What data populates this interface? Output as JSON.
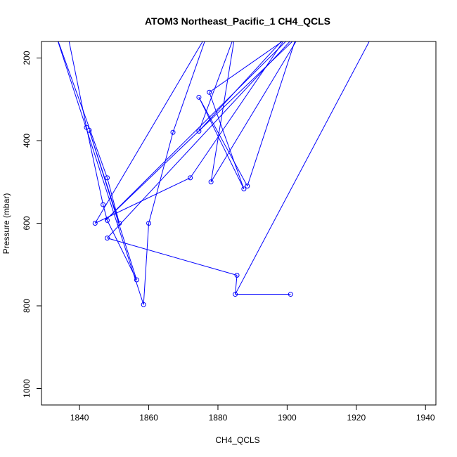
{
  "chart_data": {
    "type": "line",
    "title": "ATOM3 Northeast_Pacific_1 CH4_QCLS",
    "xlabel": "CH4_QCLS",
    "ylabel": "Pressure (mbar)",
    "xlim": [
      1829,
      1943
    ],
    "ylim": [
      1040,
      160
    ],
    "y_inverted": true,
    "x_ticks": [
      1840,
      1860,
      1880,
      1900,
      1920,
      1940
    ],
    "y_ticks": [
      200,
      400,
      600,
      800,
      1000
    ],
    "grid": false,
    "legend": "none",
    "color": "#0000ff",
    "series": [
      {
        "points": [
          [
            1836.5,
            140
          ],
          [
            1842.0,
            368
          ],
          [
            1847.0,
            555
          ],
          [
            1848.0,
            593
          ],
          [
            1856.5,
            737
          ],
          [
            1842.8,
            375
          ],
          [
            1851.5,
            600
          ],
          [
            1848.0,
            490
          ],
          [
            1833.0,
            140
          ],
          [
            1858.5,
            797
          ],
          [
            1860.0,
            600
          ],
          [
            1867.0,
            380
          ],
          [
            1877.0,
            140
          ],
          [
            1844.5,
            600
          ],
          [
            1872.0,
            490
          ],
          [
            1900.5,
            140
          ],
          [
            1874.5,
            377
          ],
          [
            1885.0,
            140
          ],
          [
            1878.0,
            500
          ],
          [
            1904.0,
            140
          ],
          [
            1847.5,
            593
          ],
          [
            1902.0,
            140
          ],
          [
            1877.5,
            283
          ],
          [
            1874.5,
            295
          ],
          [
            1888.5,
            510
          ],
          [
            1903.0,
            140
          ],
          [
            1885.0,
            772
          ],
          [
            1901.0,
            772
          ]
        ],
        "dense_points": [
          [
            1836.5,
            140
          ],
          [
            1842.0,
            368
          ],
          [
            1846.8,
            555
          ],
          [
            1848.0,
            593
          ],
          [
            1856.5,
            737
          ],
          [
            1842.8,
            375
          ],
          [
            1851.5,
            600
          ],
          [
            1848.0,
            490
          ],
          [
            1833.0,
            140
          ],
          [
            1858.5,
            797
          ],
          [
            1860.0,
            600
          ],
          [
            1867.0,
            380
          ],
          [
            1877.0,
            140
          ],
          [
            1844.5,
            600
          ],
          [
            1872.0,
            490
          ],
          [
            1900.5,
            140
          ],
          [
            1874.5,
            377
          ],
          [
            1885.0,
            140
          ],
          [
            1878.0,
            500
          ],
          [
            1904.0,
            140
          ],
          [
            1847.5,
            593
          ],
          [
            1902.0,
            140
          ],
          [
            1877.5,
            283
          ],
          [
            1887.5,
            517
          ],
          [
            1874.5,
            295
          ],
          [
            1888.5,
            510
          ],
          [
            1903.0,
            140
          ],
          [
            1848.0,
            636
          ],
          [
            1885.5,
            726
          ],
          [
            1885.0,
            772
          ],
          [
            1901.0,
            772
          ],
          [
            1885.0,
            772
          ],
          [
            1925.0,
            140
          ]
        ],
        "markers": [
          [
            1842.0,
            368
          ],
          [
            1842.8,
            375
          ],
          [
            1848.0,
            490
          ],
          [
            1846.8,
            555
          ],
          [
            1848.0,
            593
          ],
          [
            1851.5,
            600
          ],
          [
            1844.5,
            600
          ],
          [
            1848.0,
            636
          ],
          [
            1856.5,
            737
          ],
          [
            1858.5,
            797
          ],
          [
            1860.0,
            600
          ],
          [
            1867.0,
            380
          ],
          [
            1872.0,
            490
          ],
          [
            1874.5,
            377
          ],
          [
            1878.0,
            500
          ],
          [
            1877.5,
            283
          ],
          [
            1874.5,
            295
          ],
          [
            1887.5,
            517
          ],
          [
            1888.5,
            510
          ],
          [
            1885.5,
            726
          ],
          [
            1885.0,
            772
          ],
          [
            1901.0,
            772
          ]
        ]
      }
    ]
  }
}
